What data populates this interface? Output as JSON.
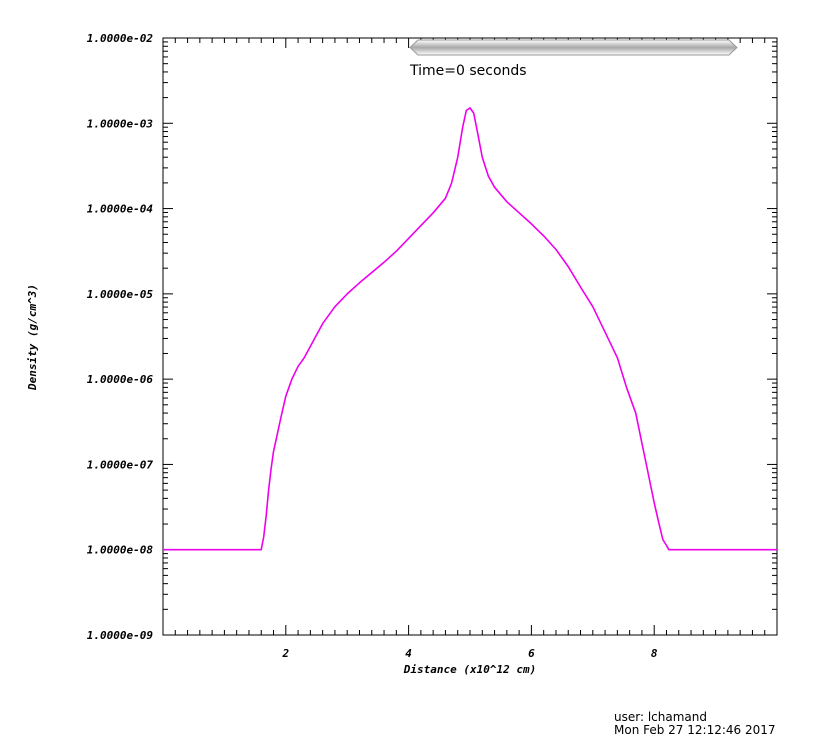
{
  "chart_data": {
    "type": "line",
    "time_label": "Time=0 seconds",
    "xlabel": "Distance (x10^12 cm)",
    "ylabel": "Density (g/cm^3)",
    "xlim": [
      0,
      10
    ],
    "ylim_exp": [
      -9,
      -2
    ],
    "y_log_scale": true,
    "grid": false,
    "x_tick_labels": [
      {
        "value": 2,
        "label": "2"
      },
      {
        "value": 4,
        "label": "4"
      },
      {
        "value": 6,
        "label": "6"
      },
      {
        "value": 8,
        "label": "8"
      }
    ],
    "y_tick_labels": [
      {
        "exp": -2,
        "label": "1.0000e-02"
      },
      {
        "exp": -3,
        "label": "1.0000e-03"
      },
      {
        "exp": -4,
        "label": "1.0000e-04"
      },
      {
        "exp": -5,
        "label": "1.0000e-05"
      },
      {
        "exp": -6,
        "label": "1.0000e-06"
      },
      {
        "exp": -7,
        "label": "1.0000e-07"
      },
      {
        "exp": -8,
        "label": "1.0000e-08"
      },
      {
        "exp": -9,
        "label": "1.0000e-09"
      }
    ],
    "series": [
      {
        "color": "#ee00ee",
        "x": [
          0,
          1.6,
          1.64,
          1.68,
          1.72,
          1.76,
          1.8,
          1.86,
          1.92,
          2.0,
          2.1,
          2.2,
          2.3,
          2.45,
          2.6,
          2.8,
          3.0,
          3.2,
          3.4,
          3.6,
          3.8,
          4.0,
          4.2,
          4.4,
          4.6,
          4.7,
          4.8,
          4.88,
          4.94,
          5.0,
          5.06,
          5.12,
          5.2,
          5.3,
          5.4,
          5.6,
          5.8,
          6.0,
          6.2,
          6.4,
          6.6,
          6.8,
          7.0,
          7.2,
          7.4,
          7.55,
          7.7,
          7.8,
          7.9,
          8.0,
          8.08,
          8.14,
          8.2,
          8.24,
          8.28,
          8.32,
          8.36,
          8.4,
          10.0
        ],
        "y_exp": [
          -8.0,
          -8.0,
          -7.85,
          -7.6,
          -7.3,
          -7.05,
          -6.85,
          -6.65,
          -6.45,
          -6.2,
          -6.0,
          -5.85,
          -5.75,
          -5.55,
          -5.35,
          -5.15,
          -5.0,
          -4.87,
          -4.75,
          -4.63,
          -4.5,
          -4.35,
          -4.2,
          -4.05,
          -3.88,
          -3.7,
          -3.4,
          -3.05,
          -2.85,
          -2.82,
          -2.88,
          -3.1,
          -3.4,
          -3.62,
          -3.75,
          -3.92,
          -4.05,
          -4.18,
          -4.32,
          -4.48,
          -4.68,
          -4.92,
          -5.15,
          -5.45,
          -5.75,
          -6.1,
          -6.4,
          -6.75,
          -7.1,
          -7.45,
          -7.7,
          -7.88,
          -7.95,
          -8.0,
          -8.0,
          -8.0,
          -8.0,
          -8.0,
          -8.0
        ]
      }
    ]
  },
  "footer": {
    "user": "user: lchamand",
    "date": "Mon Feb 27 12:12:46 2017"
  },
  "colors": {
    "line": "#ee00ee",
    "axis": "#000000",
    "slider": "#c8c8c8"
  }
}
